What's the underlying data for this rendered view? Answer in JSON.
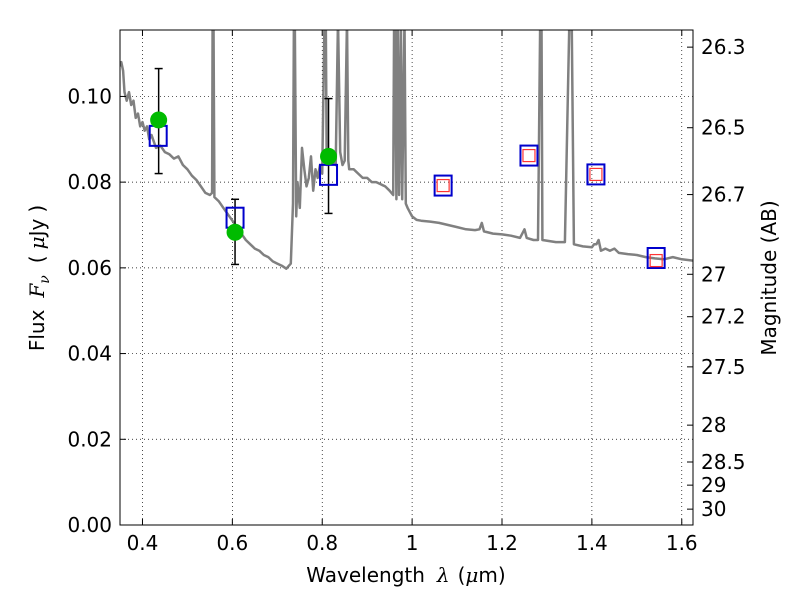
{
  "chart_data": {
    "type": "scatter",
    "title": "",
    "xlabel": "Wavelength  λ (μm)",
    "ylabel": "Flux  F_ν  ( μJy )",
    "ylabel_parts": {
      "flux": "Flux",
      "symbol": "F",
      "subscript": "ν",
      "paren_open": "(",
      "unit_mu": "μ",
      "unit": "Jy",
      "paren_close": ")"
    },
    "xlabel_parts": {
      "word": "Wavelength",
      "symbol": "λ",
      "unit_prefix": "(",
      "unit_mu": "μ",
      "unit": "m)"
    },
    "right_ylabel": "Magnitude (AB)",
    "xlim": [
      0.35,
      1.625
    ],
    "ylim": [
      0.0,
      0.1155
    ],
    "grid": true,
    "x_ticks": [
      {
        "value": 0.4,
        "label": "0.4"
      },
      {
        "value": 0.6,
        "label": "0.6"
      },
      {
        "value": 0.8,
        "label": "0.8"
      },
      {
        "value": 1.0,
        "label": "1"
      },
      {
        "value": 1.2,
        "label": "1.2"
      },
      {
        "value": 1.4,
        "label": "1.4"
      },
      {
        "value": 1.6,
        "label": "1.6"
      }
    ],
    "y_ticks": [
      {
        "value": 0.0,
        "label": "0.00"
      },
      {
        "value": 0.02,
        "label": "0.02"
      },
      {
        "value": 0.04,
        "label": "0.04"
      },
      {
        "value": 0.06,
        "label": "0.06"
      },
      {
        "value": 0.08,
        "label": "0.08"
      },
      {
        "value": 0.1,
        "label": "0.10"
      }
    ],
    "right_ticks": [
      {
        "label": "26.3",
        "flux": 0.1115
      },
      {
        "label": "26.5",
        "flux": 0.0927
      },
      {
        "label": "26.7",
        "flux": 0.0771
      },
      {
        "label": "27",
        "flux": 0.0585
      },
      {
        "label": "27.2",
        "flux": 0.0486
      },
      {
        "label": "27.5",
        "flux": 0.0369
      },
      {
        "label": "28",
        "flux": 0.0233
      },
      {
        "label": "28.5",
        "flux": 0.0147
      },
      {
        "label": "29",
        "flux": 0.0093
      },
      {
        "label": "30",
        "flux": 0.0037
      }
    ],
    "series": [
      {
        "kind": "line",
        "color": "#808080",
        "points": [
          [
            0.35,
            0.107
          ],
          [
            0.353,
            0.108
          ],
          [
            0.357,
            0.106
          ],
          [
            0.36,
            0.101
          ],
          [
            0.365,
            0.099
          ],
          [
            0.37,
            0.101
          ],
          [
            0.375,
            0.098
          ],
          [
            0.38,
            0.099
          ],
          [
            0.385,
            0.095
          ],
          [
            0.39,
            0.096
          ],
          [
            0.395,
            0.093
          ],
          [
            0.4,
            0.094
          ],
          [
            0.405,
            0.092
          ],
          [
            0.41,
            0.093
          ],
          [
            0.415,
            0.09
          ],
          [
            0.42,
            0.091
          ],
          [
            0.43,
            0.088
          ],
          [
            0.44,
            0.0885
          ],
          [
            0.45,
            0.087
          ],
          [
            0.46,
            0.0865
          ],
          [
            0.47,
            0.0855
          ],
          [
            0.48,
            0.086
          ],
          [
            0.49,
            0.084
          ],
          [
            0.5,
            0.083
          ],
          [
            0.51,
            0.0815
          ],
          [
            0.52,
            0.0805
          ],
          [
            0.53,
            0.079
          ],
          [
            0.54,
            0.0775
          ],
          [
            0.55,
            0.077
          ],
          [
            0.555,
            0.0775
          ],
          [
            0.556,
            0.118
          ],
          [
            0.558,
            0.118
          ],
          [
            0.56,
            0.0765
          ],
          [
            0.57,
            0.0755
          ],
          [
            0.58,
            0.074
          ],
          [
            0.59,
            0.0725
          ],
          [
            0.6,
            0.071
          ],
          [
            0.61,
            0.0695
          ],
          [
            0.62,
            0.068
          ],
          [
            0.63,
            0.0665
          ],
          [
            0.64,
            0.0655
          ],
          [
            0.65,
            0.0645
          ],
          [
            0.66,
            0.064
          ],
          [
            0.67,
            0.063
          ],
          [
            0.68,
            0.0625
          ],
          [
            0.69,
            0.0615
          ],
          [
            0.7,
            0.061
          ],
          [
            0.71,
            0.0605
          ],
          [
            0.72,
            0.0598
          ],
          [
            0.73,
            0.061
          ],
          [
            0.735,
            0.075
          ],
          [
            0.737,
            0.118
          ],
          [
            0.739,
            0.118
          ],
          [
            0.742,
            0.072
          ],
          [
            0.745,
            0.08
          ],
          [
            0.75,
            0.074
          ],
          [
            0.755,
            0.088
          ],
          [
            0.76,
            0.083
          ],
          [
            0.765,
            0.079
          ],
          [
            0.77,
            0.081
          ],
          [
            0.775,
            0.086
          ],
          [
            0.78,
            0.078
          ],
          [
            0.785,
            0.083
          ],
          [
            0.79,
            0.081
          ],
          [
            0.795,
            0.084
          ],
          [
            0.8,
            0.082
          ],
          [
            0.805,
            0.118
          ],
          [
            0.808,
            0.118
          ],
          [
            0.81,
            0.084
          ],
          [
            0.82,
            0.085
          ],
          [
            0.83,
            0.084
          ],
          [
            0.835,
            0.118
          ],
          [
            0.84,
            0.087
          ],
          [
            0.845,
            0.084
          ],
          [
            0.85,
            0.085
          ],
          [
            0.855,
            0.118
          ],
          [
            0.858,
            0.085
          ],
          [
            0.86,
            0.083
          ],
          [
            0.87,
            0.083
          ],
          [
            0.88,
            0.082
          ],
          [
            0.89,
            0.081
          ],
          [
            0.9,
            0.081
          ],
          [
            0.91,
            0.08
          ],
          [
            0.92,
            0.08
          ],
          [
            0.93,
            0.0795
          ],
          [
            0.94,
            0.079
          ],
          [
            0.95,
            0.078
          ],
          [
            0.958,
            0.077
          ],
          [
            0.96,
            0.118
          ],
          [
            0.962,
            0.118
          ],
          [
            0.965,
            0.076
          ],
          [
            0.968,
            0.118
          ],
          [
            0.971,
            0.077
          ],
          [
            0.975,
            0.118
          ],
          [
            0.978,
            0.076
          ],
          [
            0.983,
            0.118
          ],
          [
            0.986,
            0.075
          ],
          [
            0.99,
            0.074
          ],
          [
            1.0,
            0.072
          ],
          [
            1.01,
            0.0712
          ],
          [
            1.02,
            0.071
          ],
          [
            1.04,
            0.0708
          ],
          [
            1.06,
            0.0705
          ],
          [
            1.08,
            0.07
          ],
          [
            1.1,
            0.0695
          ],
          [
            1.12,
            0.069
          ],
          [
            1.14,
            0.0688
          ],
          [
            1.15,
            0.069
          ],
          [
            1.155,
            0.0705
          ],
          [
            1.16,
            0.0685
          ],
          [
            1.18,
            0.068
          ],
          [
            1.2,
            0.0678
          ],
          [
            1.22,
            0.0675
          ],
          [
            1.24,
            0.067
          ],
          [
            1.25,
            0.069
          ],
          [
            1.255,
            0.067
          ],
          [
            1.27,
            0.0665
          ],
          [
            1.28,
            0.0665
          ],
          [
            1.285,
            0.118
          ],
          [
            1.288,
            0.118
          ],
          [
            1.29,
            0.0665
          ],
          [
            1.32,
            0.066
          ],
          [
            1.34,
            0.066
          ],
          [
            1.35,
            0.118
          ],
          [
            1.355,
            0.118
          ],
          [
            1.36,
            0.0655
          ],
          [
            1.38,
            0.065
          ],
          [
            1.4,
            0.0648
          ],
          [
            1.405,
            0.0655
          ],
          [
            1.41,
            0.0655
          ],
          [
            1.415,
            0.0665
          ],
          [
            1.42,
            0.064
          ],
          [
            1.43,
            0.0645
          ],
          [
            1.44,
            0.064
          ],
          [
            1.45,
            0.0645
          ],
          [
            1.46,
            0.0635
          ],
          [
            1.48,
            0.0632
          ],
          [
            1.5,
            0.063
          ],
          [
            1.52,
            0.0625
          ],
          [
            1.54,
            0.0622
          ],
          [
            1.56,
            0.062
          ],
          [
            1.58,
            0.0625
          ],
          [
            1.6,
            0.062
          ],
          [
            1.625,
            0.0617
          ]
        ]
      },
      {
        "kind": "points",
        "marker": "circle",
        "color": "#00bb00",
        "points": [
          {
            "x": 0.436,
            "y": 0.0945,
            "err_low": 0.082,
            "err_high": 0.1065
          },
          {
            "x": 0.606,
            "y": 0.0683,
            "err_low": 0.0608,
            "err_high": 0.076
          },
          {
            "x": 0.814,
            "y": 0.086,
            "err_low": 0.0727,
            "err_high": 0.0995
          }
        ]
      },
      {
        "kind": "points",
        "marker": "blue-square",
        "color": "#0000cc",
        "points": [
          {
            "x": 0.435,
            "y": 0.0908
          },
          {
            "x": 0.606,
            "y": 0.0717
          },
          {
            "x": 0.814,
            "y": 0.0817
          },
          {
            "x": 1.069,
            "y": 0.0792
          },
          {
            "x": 1.26,
            "y": 0.0862
          },
          {
            "x": 1.409,
            "y": 0.0818
          },
          {
            "x": 1.543,
            "y": 0.0623
          }
        ]
      },
      {
        "kind": "points",
        "marker": "red-square",
        "color": "#ff3333",
        "points": [
          {
            "x": 1.069,
            "y": 0.0792
          },
          {
            "x": 1.26,
            "y": 0.0862
          },
          {
            "x": 1.409,
            "y": 0.0818
          },
          {
            "x": 1.543,
            "y": 0.0617
          }
        ]
      }
    ]
  }
}
